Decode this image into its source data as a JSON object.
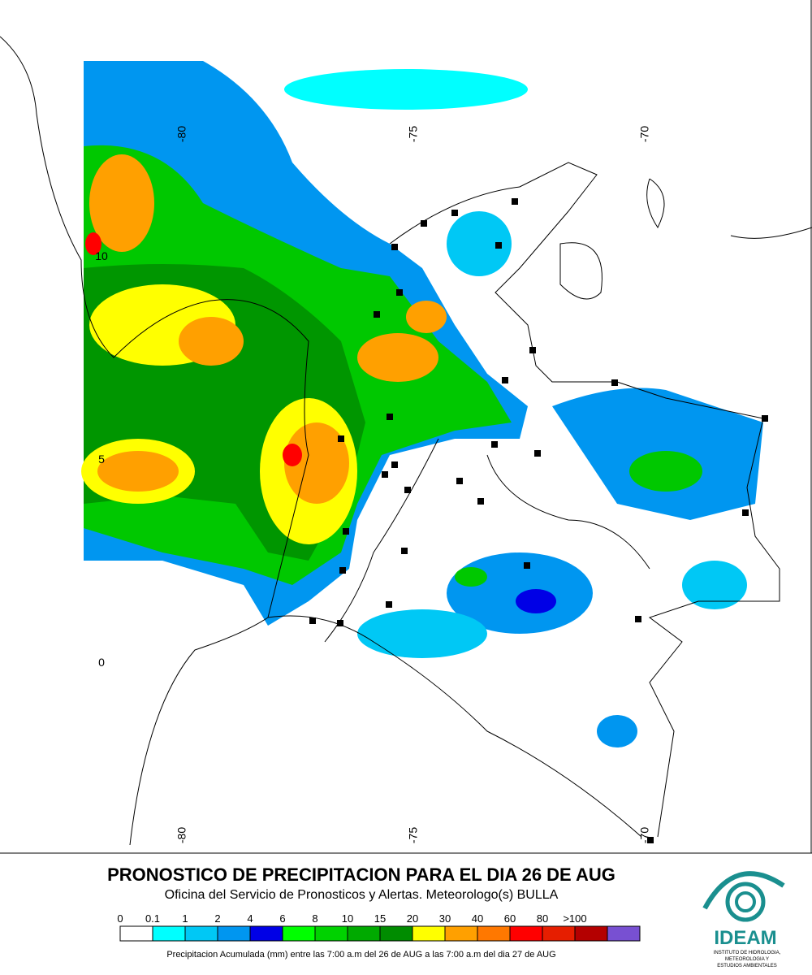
{
  "map": {
    "lon_labels": [
      -80,
      -75,
      -70
    ],
    "lat_labels": [
      10,
      5,
      0
    ]
  },
  "title": "PRONOSTICO DE PRECIPITACION PARA EL DIA 26 DE AUG",
  "subtitle": "Oficina del Servicio de Pronosticos y Alertas. Meteorologo(s) BULLA",
  "legend": [
    {
      "label": "0",
      "color": "#ffffff"
    },
    {
      "label": "0.1",
      "color": "#00ffff"
    },
    {
      "label": "1",
      "color": "#00c8f5"
    },
    {
      "label": "2",
      "color": "#0096f0"
    },
    {
      "label": "4",
      "color": "#0000e6"
    },
    {
      "label": "6",
      "color": "#00ff00"
    },
    {
      "label": "8",
      "color": "#00d200"
    },
    {
      "label": "10",
      "color": "#00aa00"
    },
    {
      "label": "15",
      "color": "#008c00"
    },
    {
      "label": "20",
      "color": "#ffff00"
    },
    {
      "label": "30",
      "color": "#ffa000"
    },
    {
      "label": "40",
      "color": "#ff7800"
    },
    {
      "label": "60",
      "color": "#ff0000"
    },
    {
      "label": "80",
      "color": "#e61e00"
    },
    {
      "label": ">100",
      "color": "#b40000"
    }
  ],
  "legend_last_color": "#7850d2",
  "caption": "Precipitacion Acumulada (mm) entre las 7:00 a.m del 26 de AUG a las 7:00 a.m del dia 27 de AUG",
  "logo": {
    "name": "IDEAM",
    "lines": [
      "INSTITUTO DE HIDROLOGIA,",
      "METEOROLOGIA Y",
      "ESTUDIOS AMBIENTALES"
    ]
  }
}
